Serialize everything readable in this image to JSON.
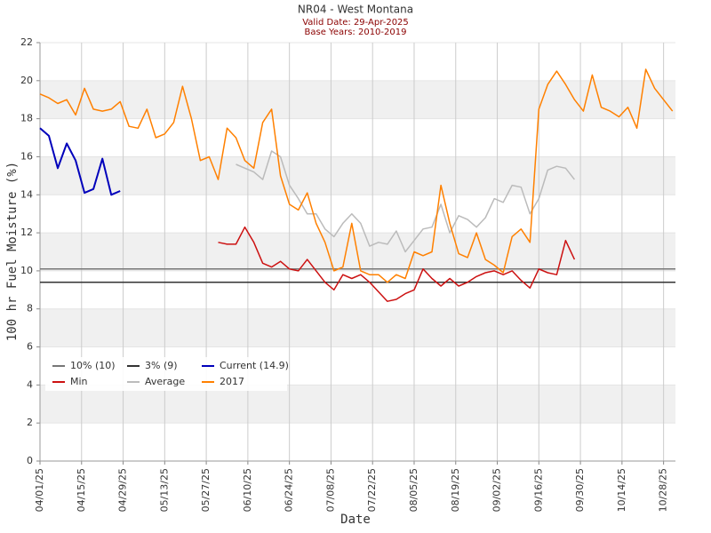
{
  "chart_data": {
    "type": "line",
    "title": "NR04 - West Montana",
    "subtitle": [
      "Valid Date: 29-Apr-2025",
      "Base Years: 2010-2019"
    ],
    "xlabel": "Date",
    "ylabel": "100 hr Fuel Moisture (%)",
    "x": [
      "04/01/25",
      "04/04/25",
      "04/07/25",
      "04/10/25",
      "04/13/25",
      "04/16/25",
      "04/19/25",
      "04/22/25",
      "04/25/25",
      "04/28/25",
      "05/01/25",
      "05/04/25",
      "05/07/25",
      "05/10/25",
      "05/13/25",
      "05/16/25",
      "05/19/25",
      "05/22/25",
      "05/25/25",
      "05/28/25",
      "05/31/25",
      "06/03/25",
      "06/06/25",
      "06/09/25",
      "06/12/25",
      "06/15/25",
      "06/18/25",
      "06/21/25",
      "06/24/25",
      "06/27/25",
      "06/30/25",
      "07/03/25",
      "07/06/25",
      "07/09/25",
      "07/12/25",
      "07/15/25",
      "07/18/25",
      "07/21/25",
      "07/24/25",
      "07/27/25",
      "07/30/25",
      "08/02/25",
      "08/05/25",
      "08/08/25",
      "08/11/25",
      "08/14/25",
      "08/17/25",
      "08/20/25",
      "08/23/25",
      "08/26/25",
      "08/29/25",
      "09/01/25",
      "09/04/25",
      "09/07/25",
      "09/10/25",
      "09/13/25",
      "09/16/25",
      "09/19/25",
      "09/22/25",
      "09/25/25",
      "09/28/25",
      "10/01/25",
      "10/04/25",
      "10/07/25",
      "10/10/25",
      "10/13/25",
      "10/16/25",
      "10/19/25",
      "10/22/25",
      "10/25/25",
      "10/28/25",
      "10/31/25"
    ],
    "hlines": [
      {
        "name": "10% (10)",
        "color": "#777777",
        "value": 10.1
      },
      {
        "name": "3% (9)",
        "color": "#333333",
        "value": 9.4
      }
    ],
    "series": [
      {
        "name": "Current (14.9)",
        "color": "#0000bb",
        "values": [
          17.5,
          17.1,
          15.4,
          16.7,
          15.8,
          14.1,
          14.3,
          15.9,
          14.0,
          14.2,
          null,
          null,
          null,
          null,
          null,
          null,
          null,
          null,
          null,
          null,
          null,
          null,
          null,
          null,
          null,
          null,
          null,
          null,
          null,
          null,
          null,
          null,
          null,
          null,
          null,
          null,
          null,
          null,
          null,
          null,
          null,
          null,
          null,
          null,
          null,
          null,
          null,
          null,
          null,
          null,
          null,
          null,
          null,
          null,
          null,
          null,
          null,
          null,
          null,
          null,
          null,
          null,
          null,
          null,
          null,
          null,
          null,
          null,
          null,
          null,
          null,
          null
        ]
      },
      {
        "name": "Min",
        "color": "#cc1111",
        "values": [
          null,
          null,
          null,
          null,
          null,
          null,
          null,
          null,
          null,
          null,
          null,
          null,
          null,
          null,
          null,
          null,
          null,
          null,
          null,
          null,
          11.5,
          11.4,
          11.4,
          12.3,
          11.5,
          10.4,
          10.2,
          10.5,
          10.1,
          10.0,
          10.6,
          10.0,
          9.4,
          9.0,
          9.8,
          9.6,
          9.8,
          9.4,
          8.9,
          8.4,
          8.5,
          8.8,
          9.0,
          10.1,
          9.6,
          9.2,
          9.6,
          9.2,
          9.4,
          9.7,
          9.9,
          10.0,
          9.8,
          10.0,
          9.5,
          9.1,
          10.1,
          9.9,
          9.8,
          11.6,
          10.6,
          null,
          null,
          null,
          null,
          null,
          null,
          null,
          null,
          null,
          null,
          null
        ]
      },
      {
        "name": "Average",
        "color": "#bbbbbb",
        "values": [
          null,
          null,
          null,
          null,
          null,
          null,
          null,
          null,
          null,
          null,
          null,
          null,
          null,
          null,
          null,
          null,
          null,
          null,
          null,
          null,
          null,
          null,
          15.6,
          15.4,
          15.2,
          14.8,
          16.3,
          16.0,
          14.5,
          13.8,
          13.0,
          13.0,
          12.2,
          11.8,
          12.5,
          13.0,
          12.5,
          11.3,
          11.5,
          11.4,
          12.1,
          11.0,
          11.6,
          12.2,
          12.3,
          13.5,
          12.0,
          12.9,
          12.7,
          12.3,
          12.8,
          13.8,
          13.6,
          14.5,
          14.4,
          13.0,
          13.8,
          15.3,
          15.5,
          15.4,
          14.8,
          null,
          null,
          null,
          null,
          null,
          null,
          null,
          null,
          null,
          null,
          null
        ]
      },
      {
        "name": "2017",
        "color": "#ff8000",
        "values": [
          19.3,
          19.1,
          18.8,
          19.0,
          18.2,
          19.6,
          18.5,
          18.4,
          18.5,
          18.9,
          17.6,
          17.5,
          18.5,
          17.0,
          17.2,
          17.8,
          19.7,
          18.0,
          15.8,
          16.0,
          14.8,
          17.5,
          17.0,
          15.8,
          15.4,
          17.8,
          18.5,
          15.0,
          13.5,
          13.2,
          14.1,
          12.5,
          11.5,
          10.0,
          10.2,
          12.5,
          10.0,
          9.8,
          9.8,
          9.4,
          9.8,
          9.6,
          11.0,
          10.8,
          11.0,
          14.5,
          12.5,
          10.9,
          10.7,
          12.0,
          10.6,
          10.3,
          9.9,
          11.8,
          12.2,
          11.5,
          18.5,
          19.8,
          20.5,
          19.8,
          19.0,
          18.4,
          20.3,
          18.6,
          18.4,
          18.1,
          18.6,
          17.5,
          20.6,
          19.6,
          19.0,
          18.4
        ]
      }
    ],
    "xlim": [
      "04/01/25",
      "11/01/25"
    ],
    "xticks": [
      "04/01/25",
      "04/15/25",
      "04/29/25",
      "05/13/25",
      "05/27/25",
      "06/10/25",
      "06/24/25",
      "07/08/25",
      "07/22/25",
      "08/05/25",
      "08/19/25",
      "09/02/25",
      "09/16/25",
      "09/30/25",
      "10/14/25",
      "10/28/25"
    ],
    "ylim": [
      0,
      22
    ],
    "yticks": [
      0,
      2,
      4,
      6,
      8,
      10,
      12,
      14,
      16,
      18,
      20,
      22
    ],
    "grid": true,
    "legend": "lower left"
  }
}
